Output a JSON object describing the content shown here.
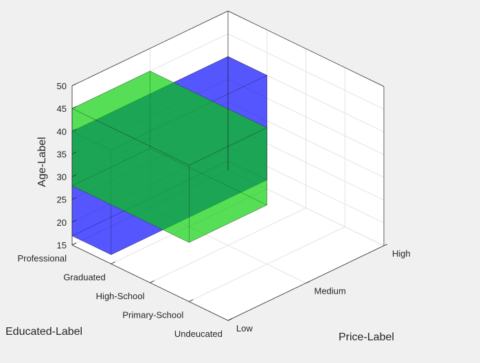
{
  "chart_data": {
    "type": "bar3d",
    "xlabel": "Price-Label",
    "ylabel": "Educated-Label",
    "zlabel": "Age-Label",
    "x_categories": [
      "Low",
      "Medium",
      "High"
    ],
    "y_categories": [
      "Professional",
      "Graduated",
      "High-School",
      "Primary-School",
      "Undeucated"
    ],
    "z_ticks": [
      15,
      20,
      25,
      30,
      35,
      40,
      45,
      50
    ],
    "zlim": [
      15,
      50
    ],
    "grid": true,
    "boxes": [
      {
        "name": "",
        "color": "#0000ff",
        "x_range": [
          "Low",
          "High"
        ],
        "y_range": [
          "Professional",
          "Graduated"
        ],
        "z_range": [
          17,
          40
        ]
      },
      {
        "name": "",
        "color": "#00cc00",
        "x_range": [
          "Low",
          "Medium"
        ],
        "y_range": [
          "Professional",
          "Primary-School"
        ],
        "z_range": [
          28,
          45
        ]
      }
    ]
  }
}
